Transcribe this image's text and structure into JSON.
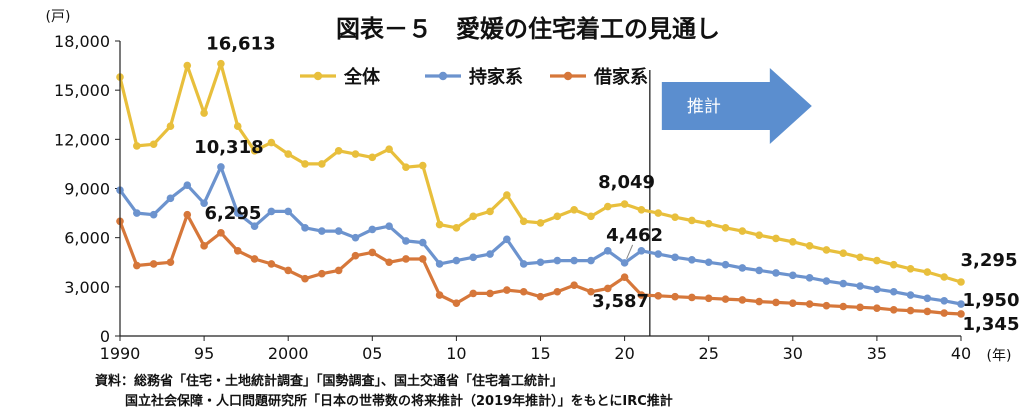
{
  "chart_data": {
    "type": "line",
    "title": "図表－５　愛媛の住宅着工の見通し",
    "y_unit": "(戸)",
    "x_unit": "(年)",
    "ylim": [
      0,
      18000
    ],
    "y_ticks": [
      0,
      3000,
      6000,
      9000,
      12000,
      15000,
      18000
    ],
    "y_tick_labels": [
      "0",
      "3,000",
      "6,000",
      "9,000",
      "12,000",
      "15,000",
      "18,000"
    ],
    "x_ticks": [
      1990,
      1995,
      2000,
      2005,
      2010,
      2015,
      2020,
      2025,
      2030,
      2035,
      2040
    ],
    "x_tick_labels": [
      "1990",
      "95",
      "2000",
      "05",
      "10",
      "15",
      "20",
      "25",
      "30",
      "35",
      "40"
    ],
    "xlim": [
      1990,
      2040
    ],
    "grid": false,
    "legend": "top-center",
    "forecast": {
      "start_year": 2021.5,
      "label": "推計"
    },
    "colors": {
      "total": "#E8BF3C",
      "owned": "#6C93CE",
      "rented": "#D6773A",
      "arrow": "#5B8ECF"
    },
    "years": [
      1990,
      1991,
      1992,
      1993,
      1994,
      1995,
      1996,
      1997,
      1998,
      1999,
      2000,
      2001,
      2002,
      2003,
      2004,
      2005,
      2006,
      2007,
      2008,
      2009,
      2010,
      2011,
      2012,
      2013,
      2014,
      2015,
      2016,
      2017,
      2018,
      2019,
      2020,
      2021,
      2022,
      2023,
      2024,
      2025,
      2026,
      2027,
      2028,
      2029,
      2030,
      2031,
      2032,
      2033,
      2034,
      2035,
      2036,
      2037,
      2038,
      2039,
      2040
    ],
    "series": [
      {
        "name": "全体",
        "key": "total",
        "values": [
          15800,
          11600,
          11700,
          12800,
          16500,
          13600,
          16613,
          12800,
          11300,
          11800,
          11100,
          10500,
          10500,
          11300,
          11100,
          10900,
          11400,
          10300,
          10400,
          6800,
          6600,
          7300,
          7600,
          8600,
          7000,
          6900,
          7300,
          7700,
          7300,
          7900,
          8049,
          7700,
          7500,
          7250,
          7050,
          6850,
          6600,
          6400,
          6150,
          5950,
          5750,
          5500,
          5250,
          5050,
          4800,
          4600,
          4350,
          4100,
          3900,
          3600,
          3295
        ]
      },
      {
        "name": "持家系",
        "key": "owned",
        "values": [
          8900,
          7500,
          7400,
          8400,
          9200,
          8100,
          10318,
          7500,
          6700,
          7600,
          7600,
          6600,
          6400,
          6400,
          6000,
          6500,
          6700,
          5800,
          5700,
          4400,
          4600,
          4800,
          5000,
          5900,
          4400,
          4500,
          4600,
          4600,
          4600,
          5200,
          4462,
          5200,
          5000,
          4800,
          4650,
          4500,
          4350,
          4150,
          4000,
          3850,
          3700,
          3550,
          3350,
          3200,
          3050,
          2850,
          2700,
          2500,
          2300,
          2150,
          1950
        ]
      },
      {
        "name": "借家系",
        "key": "rented",
        "values": [
          7000,
          4300,
          4400,
          4500,
          7400,
          5500,
          6295,
          5200,
          4700,
          4400,
          4000,
          3500,
          3800,
          4000,
          4900,
          5100,
          4500,
          4700,
          4700,
          2500,
          2000,
          2600,
          2600,
          2800,
          2700,
          2400,
          2700,
          3100,
          2700,
          2900,
          3587,
          2500,
          2450,
          2400,
          2350,
          2300,
          2250,
          2200,
          2100,
          2050,
          2000,
          1950,
          1850,
          1800,
          1750,
          1700,
          1600,
          1550,
          1500,
          1400,
          1345
        ]
      }
    ],
    "annotations": [
      {
        "text": "16,613",
        "year": 1996,
        "value": 16613
      },
      {
        "text": "10,318",
        "year": 1996,
        "value": 10318
      },
      {
        "text": "6,295",
        "year": 1996,
        "value": 6295
      },
      {
        "text": "8,049",
        "year": 2020,
        "value": 8049
      },
      {
        "text": "4,462",
        "year": 2020,
        "value": 4462
      },
      {
        "text": "3,587",
        "year": 2020,
        "value": 3587
      },
      {
        "text": "3,295",
        "year": 2040,
        "value": 3295
      },
      {
        "text": "1,950",
        "year": 2040,
        "value": 1950
      },
      {
        "text": "1,345",
        "year": 2040,
        "value": 1345
      }
    ],
    "source_lines": [
      "資料：総務省「住宅・土地統計調査」「国勢調査」、国土交通省「住宅着工統計」",
      "国立社会保障・人口問題研究所「日本の世帯数の将来推計（2019年推計）」をもとにIRC推計"
    ]
  }
}
